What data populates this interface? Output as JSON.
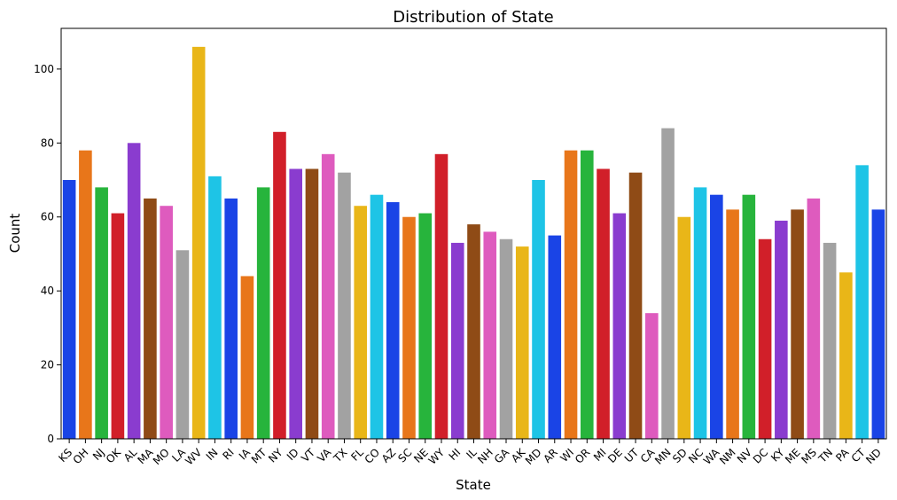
{
  "chart_data": {
    "type": "bar",
    "title": "Distribution of State",
    "xlabel": "State",
    "ylabel": "Count",
    "ylim": [
      0,
      111
    ],
    "yticks": [
      0,
      20,
      40,
      60,
      80,
      100
    ],
    "grid": false,
    "legend": "none",
    "categories": [
      "KS",
      "OH",
      "NJ",
      "OK",
      "AL",
      "MA",
      "MO",
      "LA",
      "WV",
      "IN",
      "RI",
      "IA",
      "MT",
      "NY",
      "ID",
      "VT",
      "VA",
      "TX",
      "FL",
      "CO",
      "AZ",
      "SC",
      "NE",
      "WY",
      "HI",
      "IL",
      "NH",
      "GA",
      "AK",
      "MD",
      "AR",
      "WI",
      "OR",
      "MI",
      "DE",
      "UT",
      "CA",
      "MN",
      "SD",
      "NC",
      "WA",
      "NM",
      "NV",
      "DC",
      "KY",
      "ME",
      "MS",
      "TN",
      "PA",
      "CT",
      "ND"
    ],
    "values": [
      70,
      78,
      68,
      61,
      80,
      65,
      63,
      51,
      106,
      71,
      65,
      44,
      68,
      83,
      73,
      73,
      77,
      72,
      63,
      66,
      64,
      60,
      61,
      77,
      53,
      58,
      56,
      54,
      52,
      70,
      55,
      78,
      78,
      73,
      61,
      72,
      34,
      84,
      60,
      68,
      66,
      62,
      66,
      54,
      59,
      62,
      65,
      53,
      45,
      74,
      62
    ],
    "palette": [
      "#1a44e6",
      "#e8761a",
      "#27b43c",
      "#d11f29",
      "#8a3ccf",
      "#8f4b16",
      "#de5bbe",
      "#a2a2a2",
      "#e9b618",
      "#1ec4e6"
    ]
  }
}
